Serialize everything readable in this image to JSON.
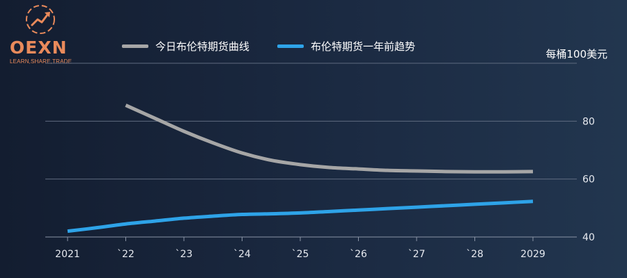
{
  "brand": {
    "name": "OEXN",
    "tagline": "LEARN,SHARE,TRADE"
  },
  "chart_data": {
    "type": "line",
    "unit_label": "每桶100美元",
    "x": [
      2021,
      2022,
      2023,
      2024,
      2025,
      2026,
      2027,
      2028,
      2029
    ],
    "x_tick_labels": [
      "2021",
      "`22",
      "`23",
      "`24",
      "`25",
      "`26",
      "`27",
      "`28",
      "2029"
    ],
    "y_ticks": [
      40,
      60,
      80
    ],
    "ylim": [
      40,
      100
    ],
    "grid": true,
    "legend_position": "top-left",
    "series": [
      {
        "name": "今日布伦特期货曲线",
        "color": "#a6a6a6",
        "points": [
          [
            2022,
            85.5
          ],
          [
            2022.5,
            81
          ],
          [
            2023,
            76.5
          ],
          [
            2023.5,
            72.5
          ],
          [
            2024,
            69
          ],
          [
            2024.5,
            66.5
          ],
          [
            2025,
            65
          ],
          [
            2025.5,
            64
          ],
          [
            2026,
            63.5
          ],
          [
            2026.5,
            63
          ],
          [
            2027,
            62.8
          ],
          [
            2027.5,
            62.6
          ],
          [
            2028,
            62.5
          ],
          [
            2028.5,
            62.5
          ],
          [
            2029,
            62.6
          ]
        ]
      },
      {
        "name": "布伦特期货一年前趋势",
        "color": "#2ea3e8",
        "points": [
          [
            2021,
            42
          ],
          [
            2021.5,
            43.2
          ],
          [
            2022,
            44.5
          ],
          [
            2022.5,
            45.5
          ],
          [
            2023,
            46.5
          ],
          [
            2023.5,
            47.2
          ],
          [
            2024,
            47.8
          ],
          [
            2024.5,
            48
          ],
          [
            2025,
            48.3
          ],
          [
            2025.5,
            48.8
          ],
          [
            2026,
            49.3
          ],
          [
            2026.5,
            49.8
          ],
          [
            2027,
            50.3
          ],
          [
            2027.5,
            50.8
          ],
          [
            2028,
            51.3
          ],
          [
            2028.5,
            51.8
          ],
          [
            2029,
            52.3
          ]
        ]
      }
    ]
  }
}
